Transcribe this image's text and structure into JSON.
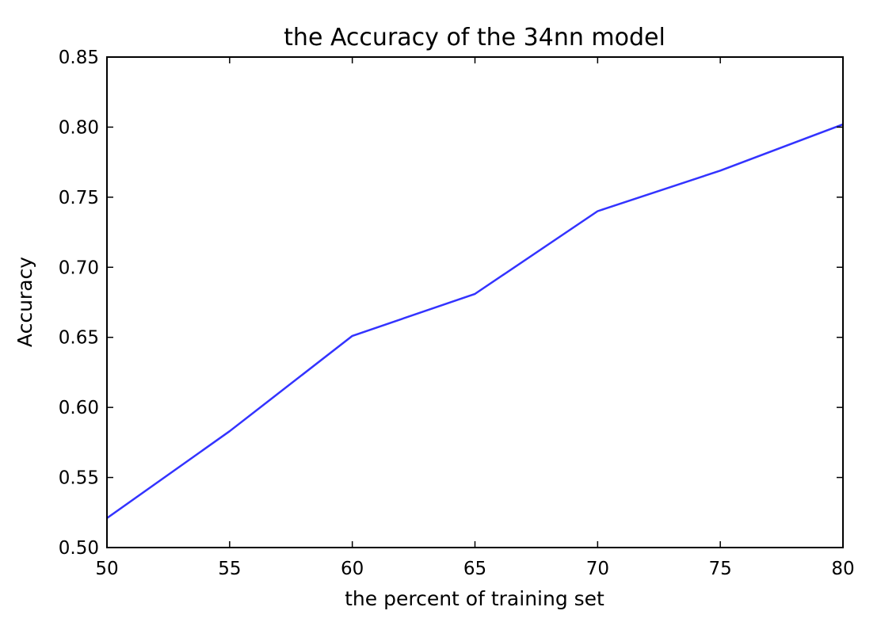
{
  "chart_data": {
    "type": "line",
    "title": "the Accuracy of the 34nn model",
    "xlabel": "the percent of training set",
    "ylabel": "Accuracy",
    "xlim": [
      50,
      80
    ],
    "ylim": [
      0.5,
      0.85
    ],
    "xticks": [
      50,
      55,
      60,
      65,
      70,
      75,
      80
    ],
    "xtick_labels": [
      "50",
      "55",
      "60",
      "65",
      "70",
      "75",
      "80"
    ],
    "yticks": [
      0.5,
      0.55,
      0.6,
      0.65,
      0.7,
      0.75,
      0.8,
      0.85
    ],
    "ytick_labels": [
      "0.50",
      "0.55",
      "0.60",
      "0.65",
      "0.70",
      "0.75",
      "0.80",
      "0.85"
    ],
    "grid": false,
    "legend": "none",
    "series": [
      {
        "color": "#3333ff",
        "x": [
          50,
          55,
          60,
          65,
          70,
          75,
          80
        ],
        "y": [
          0.521,
          0.583,
          0.651,
          0.681,
          0.74,
          0.769,
          0.802
        ]
      }
    ]
  }
}
